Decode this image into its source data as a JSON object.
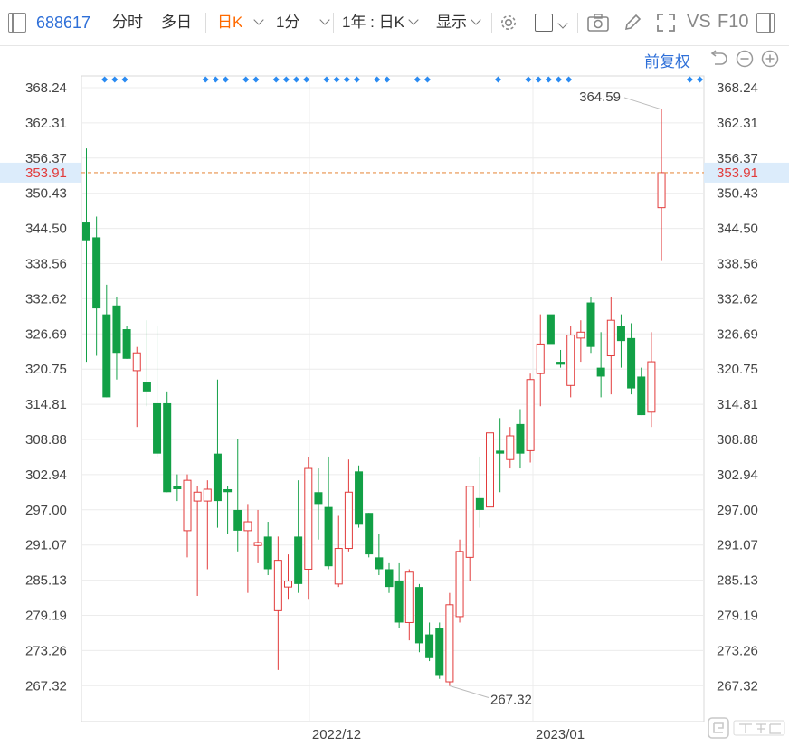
{
  "toolbar": {
    "code": "688617",
    "tabs": [
      "分时",
      "多日",
      "日K",
      "1分"
    ],
    "range": "1年 : 日K",
    "display": "显示",
    "vs": "VS",
    "f10": "F10"
  },
  "adjust": {
    "label": "前复权"
  },
  "colors": {
    "up": "#e23b3b",
    "down": "#12a046",
    "marker": "#2a8bf2",
    "accent": "#ff6a00",
    "link": "#2e6fd8"
  },
  "chart_data": {
    "type": "candlestick",
    "y_ticks": [
      "368.24",
      "362.31",
      "356.37",
      "350.43",
      "344.50",
      "338.56",
      "332.62",
      "326.69",
      "320.75",
      "314.81",
      "308.88",
      "302.94",
      "297.00",
      "291.07",
      "285.13",
      "279.19",
      "273.26",
      "267.32"
    ],
    "ylim": [
      261.38,
      374.18
    ],
    "x_labels": [
      "2022/12",
      "2023/01"
    ],
    "current_price": "353.91",
    "high_annotation": "364.59",
    "low_annotation": "267.32",
    "candles": [
      [
        345.5,
        342.5,
        358.0,
        322.0
      ],
      [
        343.0,
        331.0,
        346.5,
        323.0
      ],
      [
        330.0,
        316.0,
        335.0,
        316.0
      ],
      [
        331.5,
        323.5,
        333.0,
        319.0
      ],
      [
        327.5,
        322.5,
        328.0,
        322.5
      ],
      [
        320.5,
        323.5,
        324.5,
        311.0
      ],
      [
        318.5,
        317.0,
        329.0,
        314.5
      ],
      [
        315.0,
        306.5,
        328.0,
        306.0
      ],
      [
        315.0,
        300.0,
        317.0,
        300.0
      ],
      [
        301.0,
        300.5,
        303.0,
        298.5
      ],
      [
        293.5,
        302.0,
        303.0,
        289.0
      ],
      [
        298.5,
        300.0,
        301.0,
        282.5
      ],
      [
        298.5,
        300.5,
        302.0,
        287.0
      ],
      [
        306.5,
        298.5,
        319.0,
        294.0
      ],
      [
        300.5,
        300.0,
        301.0,
        293.0
      ],
      [
        297.0,
        293.5,
        309.0,
        290.0
      ],
      [
        293.5,
        295.0,
        298.0,
        283.0
      ],
      [
        291.0,
        291.5,
        297.0,
        288.0
      ],
      [
        292.5,
        287.0,
        295.0,
        286.0
      ],
      [
        280.0,
        288.5,
        292.5,
        270.0
      ],
      [
        284.0,
        285.0,
        289.5,
        282.0
      ],
      [
        292.5,
        284.5,
        302.0,
        283.0
      ],
      [
        287.0,
        304.0,
        306.0,
        282.0
      ],
      [
        300.0,
        298.0,
        304.0,
        292.0
      ],
      [
        297.5,
        287.5,
        306.0,
        287.0
      ],
      [
        284.5,
        290.5,
        296.0,
        284.0
      ],
      [
        290.5,
        300.0,
        305.5,
        290.0
      ],
      [
        303.5,
        294.5,
        304.5,
        294.0
      ],
      [
        296.5,
        289.5,
        296.5,
        289.0
      ],
      [
        289.0,
        287.0,
        293.0,
        286.0
      ],
      [
        287.0,
        284.0,
        288.0,
        283.0
      ],
      [
        285.0,
        278.0,
        288.0,
        277.0
      ],
      [
        278.0,
        286.5,
        287.0,
        275.0
      ],
      [
        284.0,
        274.5,
        284.5,
        273.0
      ],
      [
        276.0,
        272.0,
        278.0,
        271.5
      ],
      [
        277.0,
        269.0,
        278.0,
        268.5
      ],
      [
        268.0,
        281.0,
        283.0,
        267.3
      ],
      [
        279.0,
        290.0,
        292.0,
        278.0
      ],
      [
        289.0,
        301.0,
        301.0,
        285.0
      ],
      [
        299.0,
        297.0,
        306.0,
        294.0
      ],
      [
        297.5,
        310.0,
        312.0,
        296.0
      ],
      [
        307.0,
        306.5,
        312.5,
        300.0
      ],
      [
        305.5,
        309.5,
        311.0,
        304.0
      ],
      [
        311.5,
        306.5,
        314.0,
        304.0
      ],
      [
        307.0,
        319.0,
        320.0,
        305.0
      ],
      [
        320.0,
        325.0,
        330.0,
        314.5
      ],
      [
        330.0,
        325.0,
        326.5,
        326.0
      ],
      [
        322.0,
        321.5,
        324.0,
        321.0
      ],
      [
        318.0,
        326.5,
        328.0,
        316.0
      ],
      [
        326.0,
        327.0,
        329.0,
        322.0
      ],
      [
        332.0,
        324.5,
        333.0,
        323.5
      ],
      [
        321.0,
        319.5,
        327.0,
        316.0
      ],
      [
        323.0,
        329.0,
        333.0,
        316.5
      ],
      [
        328.0,
        325.5,
        330.0,
        321.0
      ],
      [
        326.0,
        317.5,
        328.5,
        316.5
      ],
      [
        319.5,
        313.0,
        321.0,
        313.0
      ],
      [
        313.5,
        322.0,
        327.0,
        311.0
      ],
      [
        348.0,
        353.91,
        364.59,
        339.0
      ]
    ],
    "markers_at": [
      1,
      2,
      3,
      11,
      12,
      13,
      15,
      16,
      18,
      19,
      20,
      21,
      23,
      24,
      25,
      26,
      28,
      29,
      32,
      33,
      40,
      43,
      44,
      45,
      46,
      47,
      59,
      60
    ]
  }
}
